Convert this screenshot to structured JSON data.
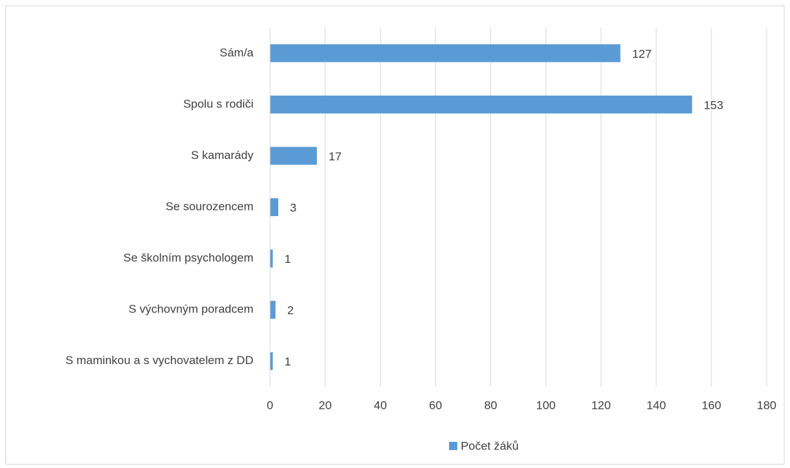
{
  "chart_data": {
    "type": "bar",
    "orientation": "horizontal",
    "categories": [
      "Sám/a",
      "Spolu s rodiči",
      "S kamarády",
      "Se sourozencem",
      "Se školním psychologem",
      "S výchovným poradcem",
      "S maminkou a s vychovatelem z DD"
    ],
    "series": [
      {
        "name": "Počet žáků",
        "color": "#5b9bd5",
        "values": [
          127,
          153,
          17,
          3,
          1,
          2,
          1
        ]
      }
    ],
    "xlim": [
      0,
      180
    ],
    "xticks": [
      0,
      20,
      40,
      60,
      80,
      100,
      120,
      140,
      160,
      180
    ],
    "grid": true,
    "legend": "bottom"
  }
}
